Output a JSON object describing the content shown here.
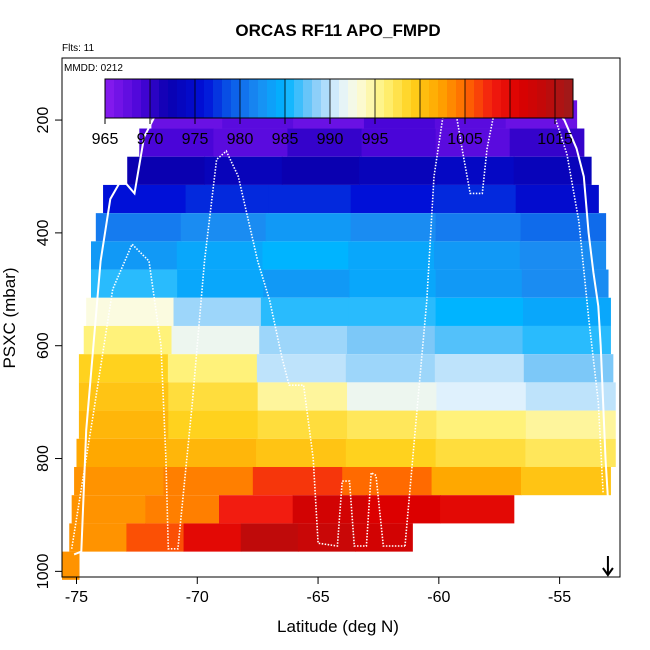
{
  "chart_data": {
    "type": "heatmap",
    "title": "ORCAS RF11 APO_FMPD",
    "flights_label": "Flts: 11",
    "date_label": "MMDD: 0212",
    "xlabel": "Latitude (deg N)",
    "ylabel": "PSXC (mbar)",
    "xlim": [
      -75.6,
      -52.5
    ],
    "ylim": [
      1010,
      90
    ],
    "x_ticks": [
      -75,
      -70,
      -65,
      -60,
      -55
    ],
    "y_ticks": [
      200,
      400,
      600,
      800,
      1000
    ],
    "colorbar": {
      "min": 965,
      "max": 1017,
      "ticks": [
        965,
        970,
        975,
        980,
        985,
        990,
        995,
        1005,
        1015
      ],
      "stops": [
        {
          "v": 965,
          "c": "#8a1cf0"
        },
        {
          "v": 969,
          "c": "#4a05d8"
        },
        {
          "v": 972,
          "c": "#0a00b0"
        },
        {
          "v": 976,
          "c": "#0010d8"
        },
        {
          "v": 979,
          "c": "#0a5ae8"
        },
        {
          "v": 982,
          "c": "#1a8cf2"
        },
        {
          "v": 985,
          "c": "#00b4ff"
        },
        {
          "v": 988,
          "c": "#7cc8f8"
        },
        {
          "v": 991,
          "c": "#dff1fd"
        },
        {
          "v": 993,
          "c": "#fbfbe0"
        },
        {
          "v": 996,
          "c": "#fff27a"
        },
        {
          "v": 999,
          "c": "#ffd21e"
        },
        {
          "v": 1002,
          "c": "#ffa800"
        },
        {
          "v": 1005,
          "c": "#ff6a00"
        },
        {
          "v": 1008,
          "c": "#f21c10"
        },
        {
          "v": 1011,
          "c": "#dc0000"
        },
        {
          "v": 1014,
          "c": "#bf0a0a"
        },
        {
          "v": 1017,
          "c": "#9c1b1b"
        }
      ]
    },
    "bands": [
      {
        "p_top": 165,
        "p_bot": 215,
        "lat_start": -71.9,
        "lat_end": -54.3,
        "values": [
          967,
          968,
          967,
          969,
          968,
          967
        ]
      },
      {
        "p_top": 215,
        "p_bot": 265,
        "lat_start": -72.4,
        "lat_end": -54.0,
        "values": [
          969,
          968,
          970,
          969,
          968,
          970
        ]
      },
      {
        "p_top": 265,
        "p_bot": 315,
        "lat_start": -72.9,
        "lat_end": -53.7,
        "values": [
          972,
          973,
          972,
          973,
          974,
          973
        ]
      },
      {
        "p_top": 315,
        "p_bot": 365,
        "lat_start": -73.9,
        "lat_end": -53.4,
        "values": [
          976,
          977,
          977,
          976,
          977,
          975
        ]
      },
      {
        "p_top": 365,
        "p_bot": 415,
        "lat_start": -74.2,
        "lat_end": -53.1,
        "values": [
          981,
          982,
          983,
          982,
          981,
          980
        ]
      },
      {
        "p_top": 415,
        "p_bot": 465,
        "lat_start": -74.4,
        "lat_end": -53.1,
        "values": [
          983,
          984,
          985,
          984,
          983,
          982
        ]
      },
      {
        "p_top": 465,
        "p_bot": 515,
        "lat_start": -74.4,
        "lat_end": -53.0,
        "values": [
          986,
          984,
          983,
          984,
          983,
          982
        ]
      },
      {
        "p_top": 515,
        "p_bot": 565,
        "lat_start": -74.6,
        "lat_end": -52.9,
        "values": [
          993,
          989,
          986,
          986,
          985,
          984
        ]
      },
      {
        "p_top": 565,
        "p_bot": 615,
        "lat_start": -74.7,
        "lat_end": -52.9,
        "values": [
          996,
          992,
          989,
          988,
          987,
          986
        ]
      },
      {
        "p_top": 615,
        "p_bot": 665,
        "lat_start": -74.9,
        "lat_end": -52.8,
        "values": [
          999,
          996,
          990,
          989,
          990,
          988
        ]
      },
      {
        "p_top": 665,
        "p_bot": 715,
        "lat_start": -74.9,
        "lat_end": -52.7,
        "values": [
          1000,
          998,
          995,
          992,
          991,
          990
        ]
      },
      {
        "p_top": 715,
        "p_bot": 765,
        "lat_start": -74.9,
        "lat_end": -52.7,
        "values": [
          1001,
          999,
          998,
          997,
          996,
          995
        ]
      },
      {
        "p_top": 765,
        "p_bot": 815,
        "lat_start": -75.0,
        "lat_end": -52.7,
        "values": [
          1002,
          1001,
          1000,
          999,
          998,
          997
        ]
      },
      {
        "p_top": 815,
        "p_bot": 865,
        "lat_start": -75.1,
        "lat_end": -52.9,
        "values": [
          1003,
          1004,
          1007,
          1005,
          1002,
          1000
        ]
      },
      {
        "p_top": 865,
        "p_bot": 915,
        "lat_start": -75.2,
        "lat_end": -56.9,
        "values": [
          1003,
          1004,
          1008,
          1012,
          1011,
          1010
        ]
      },
      {
        "p_top": 915,
        "p_bot": 965,
        "lat_start": -75.3,
        "lat_end": -61.1,
        "values": [
          1003,
          1006,
          1010,
          1014,
          1013,
          1012
        ]
      },
      {
        "p_top": 965,
        "p_bot": 1015,
        "lat_start": -75.6,
        "lat_end": -74.9,
        "values": [
          1003
        ]
      }
    ],
    "flight_track": [
      [
        -75.1,
        970
      ],
      [
        -74.8,
        965
      ],
      [
        -74.6,
        750
      ],
      [
        -74.3,
        600
      ],
      [
        -74.0,
        450
      ],
      [
        -73.6,
        340
      ],
      [
        -73.2,
        310
      ],
      [
        -73.0,
        310
      ],
      [
        -72.6,
        330
      ],
      [
        -72.2,
        230
      ],
      [
        -71.6,
        180
      ],
      [
        -70.0,
        180
      ],
      [
        -67.0,
        180
      ],
      [
        -63.0,
        180
      ],
      [
        -61.0,
        175
      ],
      [
        -58.0,
        180
      ],
      [
        -55.2,
        180
      ],
      [
        -54.8,
        200
      ],
      [
        -54.3,
        250
      ],
      [
        -54.0,
        300
      ],
      [
        -53.8,
        400
      ],
      [
        -53.6,
        470
      ],
      [
        -53.4,
        530
      ],
      [
        -53.3,
        600
      ],
      [
        -53.2,
        700
      ],
      [
        -53.1,
        800
      ],
      [
        -53.0,
        870
      ]
    ],
    "dotted_tracks": [
      [
        [
          -75.2,
          960
        ],
        [
          -74.3,
          720
        ],
        [
          -73.5,
          500
        ],
        [
          -72.7,
          420
        ],
        [
          -72.0,
          450
        ],
        [
          -71.5,
          600
        ],
        [
          -71.3,
          800
        ],
        [
          -71.2,
          960
        ],
        [
          -70.8,
          960
        ],
        [
          -70.2,
          700
        ],
        [
          -69.7,
          450
        ],
        [
          -69.2,
          270
        ],
        [
          -68.8,
          255
        ],
        [
          -68.3,
          300
        ],
        [
          -67.5,
          450
        ],
        [
          -67.0,
          520
        ],
        [
          -66.5,
          620
        ],
        [
          -66.2,
          670
        ],
        [
          -65.6,
          670
        ],
        [
          -65.2,
          800
        ],
        [
          -65.0,
          950
        ],
        [
          -64.2,
          955
        ],
        [
          -64.0,
          840
        ],
        [
          -63.7,
          840
        ],
        [
          -63.5,
          955
        ],
        [
          -63.0,
          955
        ],
        [
          -62.8,
          825
        ],
        [
          -62.6,
          830
        ],
        [
          -62.3,
          955
        ],
        [
          -61.4,
          955
        ]
      ],
      [
        [
          -61.4,
          955
        ],
        [
          -61.0,
          760
        ],
        [
          -60.5,
          520
        ],
        [
          -60.2,
          300
        ],
        [
          -59.8,
          185
        ],
        [
          -59.3,
          185
        ],
        [
          -59.0,
          260
        ],
        [
          -58.7,
          330
        ],
        [
          -58.2,
          330
        ],
        [
          -58.0,
          250
        ],
        [
          -57.7,
          185
        ],
        [
          -56.3,
          185
        ],
        [
          -55.2,
          195
        ],
        [
          -54.7,
          260
        ],
        [
          -54.2,
          380
        ],
        [
          -53.8,
          550
        ],
        [
          -53.4,
          700
        ],
        [
          -53.2,
          860
        ]
      ]
    ],
    "arrow_lat": -53.0
  }
}
